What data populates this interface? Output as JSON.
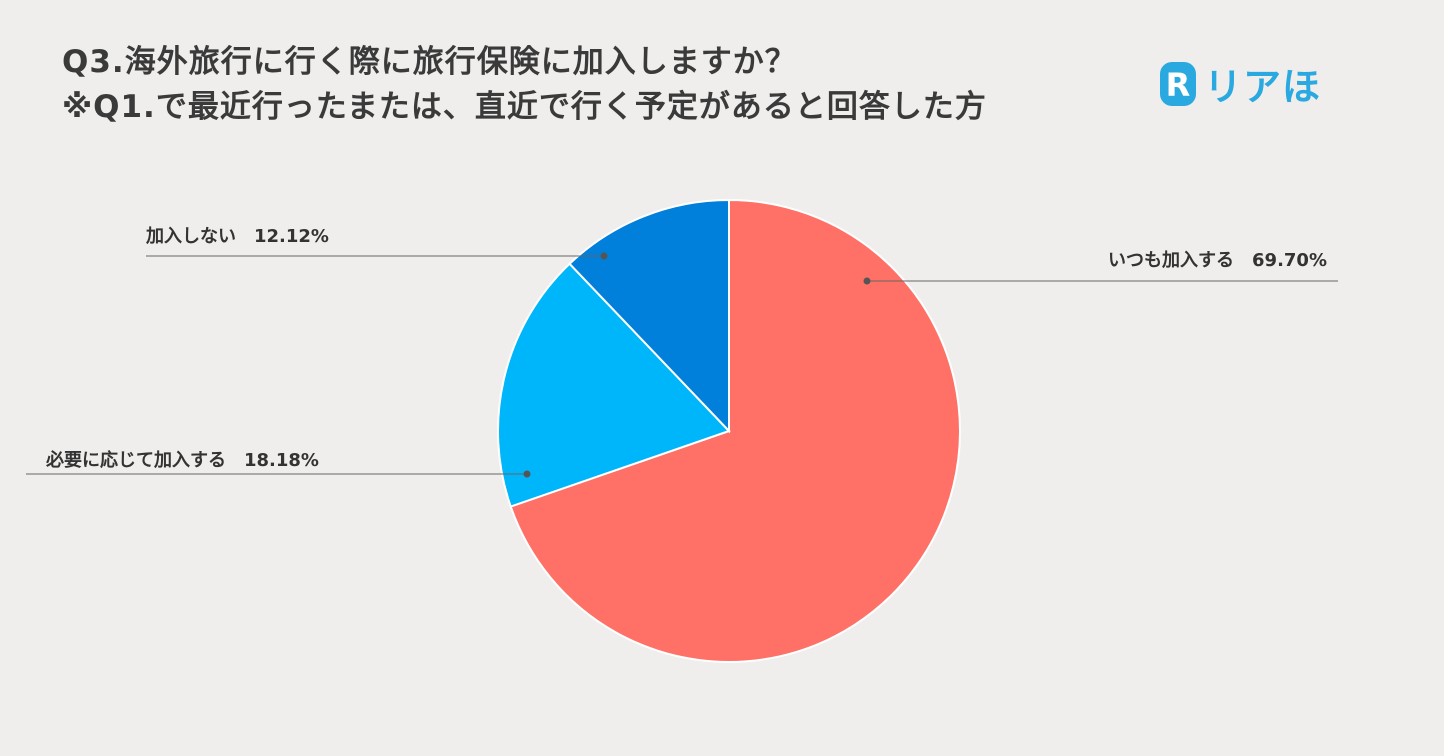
{
  "header": {
    "title_line1": "Q3.海外旅行に行く際に旅行保険に加入しますか？",
    "title_line2": "※Q1.で最近行ったまたは、直近で行く予定があると回答した方"
  },
  "logo": {
    "text": "リアほ",
    "mark_letter": "R",
    "color": "#2aa8e0"
  },
  "chart_data": {
    "type": "pie",
    "title": "Q3.海外旅行に行く際に旅行保険に加入しますか？",
    "slices": [
      {
        "label": "いつも加入する",
        "value": 69.7,
        "display": "69.70%",
        "color": "#ff7166"
      },
      {
        "label": "必要に応じて加入する",
        "value": 18.18,
        "display": "18.18%",
        "color": "#00b6fa"
      },
      {
        "label": "加入しない",
        "value": 12.12,
        "display": "12.12%",
        "color": "#007fdb"
      }
    ],
    "start_angle_deg": 0,
    "direction": "clockwise"
  }
}
